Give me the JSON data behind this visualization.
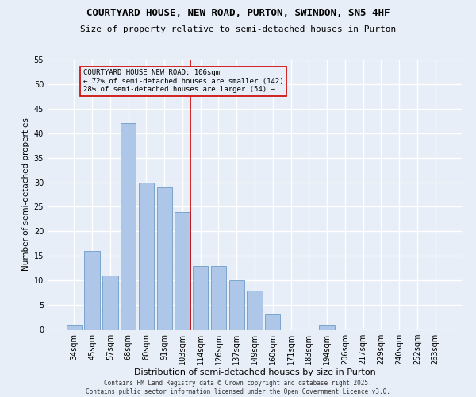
{
  "title": "COURTYARD HOUSE, NEW ROAD, PURTON, SWINDON, SN5 4HF",
  "subtitle": "Size of property relative to semi-detached houses in Purton",
  "xlabel": "Distribution of semi-detached houses by size in Purton",
  "ylabel": "Number of semi-detached properties",
  "categories": [
    "34sqm",
    "45sqm",
    "57sqm",
    "68sqm",
    "80sqm",
    "91sqm",
    "103sqm",
    "114sqm",
    "126sqm",
    "137sqm",
    "149sqm",
    "160sqm",
    "171sqm",
    "183sqm",
    "194sqm",
    "206sqm",
    "217sqm",
    "229sqm",
    "240sqm",
    "252sqm",
    "263sqm"
  ],
  "values": [
    1,
    16,
    11,
    42,
    30,
    29,
    24,
    13,
    13,
    10,
    8,
    3,
    0,
    0,
    1,
    0,
    0,
    0,
    0,
    0,
    0
  ],
  "bar_color": "#aec6e8",
  "bar_edge_color": "#5a8fc0",
  "bg_color": "#e8eef7",
  "grid_color": "#ffffff",
  "vline_x": 6,
  "vline_color": "#cc0000",
  "annotation_text": "COURTYARD HOUSE NEW ROAD: 106sqm\n← 72% of semi-detached houses are smaller (142)\n28% of semi-detached houses are larger (54) →",
  "annotation_box_color": "#cc0000",
  "ylim": [
    0,
    55
  ],
  "yticks": [
    0,
    5,
    10,
    15,
    20,
    25,
    30,
    35,
    40,
    45,
    50,
    55
  ],
  "footer": "Contains HM Land Registry data © Crown copyright and database right 2025.\nContains public sector information licensed under the Open Government Licence v3.0.",
  "title_fontsize": 9,
  "subtitle_fontsize": 8,
  "xlabel_fontsize": 8,
  "ylabel_fontsize": 7.5,
  "tick_fontsize": 7,
  "annotation_fontsize": 6.5,
  "footer_fontsize": 5.5
}
